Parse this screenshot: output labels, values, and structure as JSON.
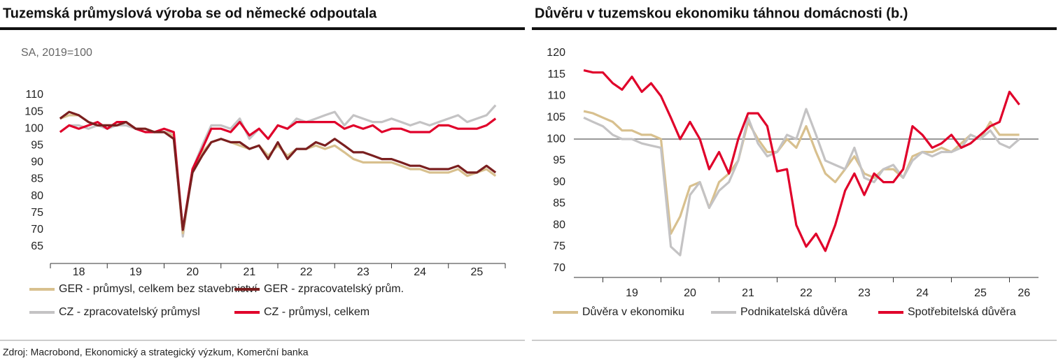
{
  "source": "Zdroj: Macrobond, Ekonomický a strategický výzkum, Komerční banka",
  "chart_data": [
    {
      "type": "line",
      "title": "Tuzemská průmyslová výroba se od německé odpoutala",
      "subtitle": "SA, 2019=100",
      "x": [
        18.17,
        18.33,
        18.5,
        18.67,
        18.83,
        19,
        19.17,
        19.33,
        19.5,
        19.67,
        19.83,
        20,
        20.17,
        20.33,
        20.5,
        20.67,
        20.83,
        21,
        21.17,
        21.33,
        21.5,
        21.67,
        21.83,
        22,
        22.17,
        22.33,
        22.5,
        22.67,
        22.83,
        23,
        23.17,
        23.33,
        23.5,
        23.67,
        23.83,
        24,
        24.17,
        24.33,
        24.5,
        24.67,
        24.83,
        25,
        25.17,
        25.33,
        25.5,
        25.67,
        25.83
      ],
      "xlim": [
        18,
        26
      ],
      "xticks": [
        {
          "value": 18.5,
          "label": "18"
        },
        {
          "value": 19.5,
          "label": "19"
        },
        {
          "value": 20.5,
          "label": "20"
        },
        {
          "value": 21.5,
          "label": "21"
        },
        {
          "value": 22.5,
          "label": "22"
        },
        {
          "value": 23.5,
          "label": "23"
        },
        {
          "value": 24.5,
          "label": "24"
        },
        {
          "value": 25.5,
          "label": "25"
        }
      ],
      "ylim": [
        60,
        110
      ],
      "yticks": [
        65,
        70,
        75,
        80,
        85,
        90,
        95,
        100,
        105,
        110
      ],
      "grid": false,
      "series": [
        {
          "name": "CZ - zpracovatelský průmysl",
          "color": "#c4c3c4",
          "values": [
            99,
            101,
            101,
            100,
            101,
            100,
            101,
            101,
            100,
            99,
            99,
            99,
            99,
            68,
            88,
            95,
            101,
            101,
            100,
            103,
            97,
            100,
            97,
            101,
            100,
            103,
            102,
            103,
            104,
            105,
            101,
            104,
            103,
            102,
            102,
            103,
            102,
            101,
            102,
            101,
            102,
            103,
            104,
            102,
            103,
            104,
            107
          ]
        },
        {
          "name": "GER - průmysl, celkem bez stavebnictví",
          "color": "#d8c08e",
          "values": [
            103,
            104,
            104,
            102,
            101,
            101,
            101,
            102,
            100,
            100,
            99,
            99,
            98,
            69,
            88,
            93,
            96,
            97,
            96,
            95,
            94,
            95,
            92,
            95,
            92,
            94,
            94,
            95,
            94,
            95,
            93,
            91,
            90,
            90,
            90,
            90,
            89,
            88,
            88,
            87,
            87,
            87,
            88,
            86,
            87,
            88,
            86
          ]
        },
        {
          "name": "CZ - průmysl, celkem",
          "color": "#e0002a",
          "values": [
            99,
            101,
            100,
            101,
            102,
            100,
            102,
            102,
            100,
            99,
            99,
            100,
            99,
            70,
            88,
            94,
            100,
            100,
            99,
            102,
            98,
            100,
            97,
            101,
            100,
            102,
            102,
            102,
            102,
            102,
            100,
            101,
            100,
            101,
            99,
            100,
            100,
            99,
            99,
            99,
            101,
            101,
            100,
            100,
            100,
            101,
            103
          ]
        },
        {
          "name": "GER - zpracovatelský prům.",
          "color": "#7a1f1f",
          "values": [
            103,
            105,
            104,
            102,
            101,
            101,
            101,
            102,
            100,
            100,
            99,
            99,
            97,
            70,
            87,
            92,
            96,
            97,
            96,
            96,
            94,
            95,
            91,
            96,
            91,
            94,
            94,
            96,
            95,
            97,
            95,
            93,
            93,
            92,
            91,
            91,
            90,
            89,
            89,
            88,
            88,
            88,
            89,
            87,
            87,
            89,
            87
          ]
        }
      ]
    },
    {
      "type": "line",
      "title": "Důvěru v tuzemskou ekonomiku táhnou domácnosti (b.)",
      "x": [
        18.67,
        18.83,
        19,
        19.17,
        19.33,
        19.5,
        19.67,
        19.83,
        20,
        20.17,
        20.33,
        20.5,
        20.67,
        20.83,
        21,
        21.17,
        21.33,
        21.5,
        21.67,
        21.83,
        22,
        22.17,
        22.33,
        22.5,
        22.67,
        22.83,
        23,
        23.17,
        23.33,
        23.5,
        23.67,
        23.83,
        24,
        24.17,
        24.33,
        24.5,
        24.67,
        24.83,
        25,
        25.17,
        25.33,
        25.5,
        25.67,
        25.83,
        26,
        26.17
      ],
      "xlim": [
        18.5,
        26.5
      ],
      "xticks": [
        {
          "value": 19.5,
          "label": "19"
        },
        {
          "value": 20.5,
          "label": "20"
        },
        {
          "value": 21.5,
          "label": "21"
        },
        {
          "value": 22.5,
          "label": "22"
        },
        {
          "value": 23.5,
          "label": "23"
        },
        {
          "value": 24.5,
          "label": "24"
        },
        {
          "value": 25.5,
          "label": "25"
        },
        {
          "value": 26.25,
          "label": "26"
        }
      ],
      "ylim": [
        67.5,
        120
      ],
      "yticks": [
        70,
        75,
        80,
        85,
        90,
        95,
        100,
        105,
        110,
        115,
        120
      ],
      "grid": false,
      "reference_line": 100,
      "series": [
        {
          "name": "Důvěra v ekonomiku",
          "color": "#d8c08e",
          "values": [
            106.5,
            106,
            105,
            104,
            102,
            102,
            101,
            101,
            100,
            78,
            82,
            89,
            90,
            84,
            90,
            92,
            95,
            104,
            100,
            97,
            97,
            100,
            98,
            103,
            97,
            92,
            90,
            93,
            96,
            92,
            91,
            93,
            93,
            91,
            96,
            97,
            97,
            98,
            97,
            99,
            101,
            100,
            104,
            101,
            101,
            101
          ]
        },
        {
          "name": "Podnikatelská důvěra",
          "color": "#c4c3c4",
          "values": [
            105,
            104,
            103,
            101,
            100,
            100,
            99,
            98.5,
            98,
            75,
            73,
            87,
            90,
            84,
            88,
            90,
            95,
            105,
            99,
            96,
            97,
            101,
            100,
            107,
            101,
            95,
            94,
            93,
            98,
            91,
            90,
            93,
            94,
            91,
            95,
            97,
            96,
            97,
            97,
            98,
            101,
            100,
            102,
            99,
            98,
            100
          ]
        },
        {
          "name": "Spotřebitelská důvěra",
          "color": "#e0002a",
          "values": [
            116,
            115.5,
            115.5,
            113,
            111.5,
            114.5,
            111,
            113,
            110,
            105,
            100,
            104,
            100,
            93,
            97,
            92,
            100,
            106,
            106,
            103,
            92.5,
            93,
            80,
            75,
            78,
            74,
            80,
            88,
            92,
            87,
            92,
            90,
            90,
            93,
            103,
            101,
            98,
            99,
            101,
            98,
            99,
            101,
            103,
            104,
            111,
            108
          ]
        }
      ]
    }
  ]
}
